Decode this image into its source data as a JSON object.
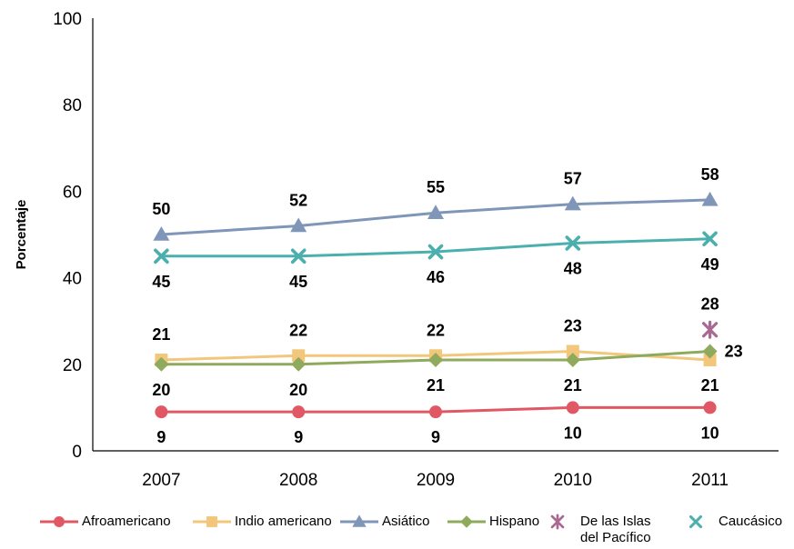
{
  "chart_data": {
    "type": "line",
    "title": "",
    "xlabel": "",
    "ylabel": "Porcentaje",
    "categories": [
      "2007",
      "2008",
      "2009",
      "2010",
      "2011"
    ],
    "ylim": [
      0,
      100
    ],
    "yticks": [
      "0",
      "20",
      "40",
      "60",
      "80",
      "100"
    ],
    "grid": false,
    "legend_position": "bottom",
    "series": [
      {
        "name": "Afroamericano",
        "values": [
          9,
          9,
          9,
          10,
          10
        ],
        "color": "#e05864",
        "marker": "circle"
      },
      {
        "name": "Indio americano",
        "values": [
          21,
          22,
          22,
          23,
          21
        ],
        "color": "#f2c77c",
        "marker": "square"
      },
      {
        "name": "Asiático",
        "values": [
          50,
          52,
          55,
          57,
          58
        ],
        "color": "#7f96b8",
        "marker": "triangle"
      },
      {
        "name": "Hispano",
        "values": [
          20,
          20,
          21,
          21,
          23
        ],
        "color": "#8faa5c",
        "marker": "diamond"
      },
      {
        "name": "De las Islas del Pacífico",
        "values": [
          null,
          null,
          null,
          null,
          28
        ],
        "color": "#a86a92",
        "marker": "star"
      },
      {
        "name": "Caucásico",
        "values": [
          45,
          45,
          46,
          48,
          49
        ],
        "color": "#4bb0ad",
        "marker": "x"
      }
    ]
  }
}
